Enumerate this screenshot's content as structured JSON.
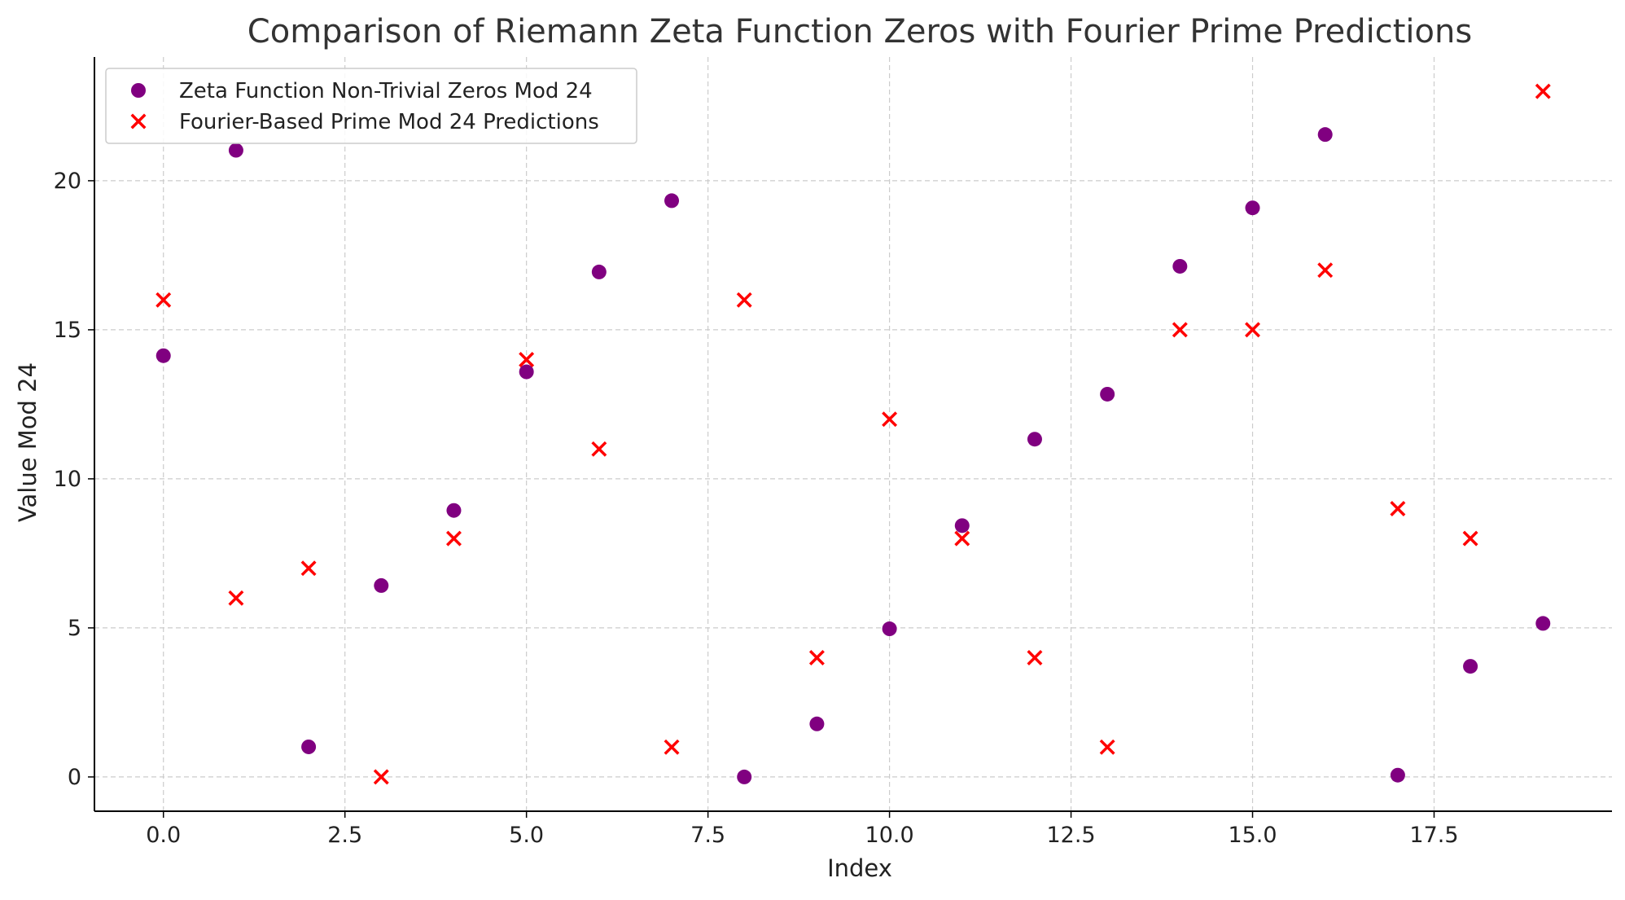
{
  "chart_data": {
    "type": "scatter",
    "title": "Comparison of Riemann Zeta Function Zeros with Fourier Prime Predictions",
    "xlabel": "Index",
    "ylabel": "Value Mod 24",
    "xlim": [
      -0.95,
      19.95
    ],
    "ylim": [
      -1.15,
      24.15
    ],
    "x_ticks": [
      0.0,
      2.5,
      5.0,
      7.5,
      10.0,
      12.5,
      15.0,
      17.5
    ],
    "x_tick_labels": [
      "0.0",
      "2.5",
      "5.0",
      "7.5",
      "10.0",
      "12.5",
      "15.0",
      "17.5"
    ],
    "y_ticks": [
      0,
      5,
      10,
      15,
      20
    ],
    "y_tick_labels": [
      "0",
      "5",
      "10",
      "15",
      "20"
    ],
    "grid": true,
    "legend_position": "top-left",
    "series": [
      {
        "name": "Zeta Function Non-Trivial Zeros Mod 24",
        "marker": "circle",
        "color": "#800080",
        "x": [
          0,
          1,
          2,
          3,
          4,
          5,
          6,
          7,
          8,
          9,
          10,
          11,
          12,
          13,
          14,
          15,
          16,
          17,
          18,
          19
        ],
        "y": [
          14.13,
          21.02,
          1.01,
          6.42,
          8.94,
          13.59,
          16.94,
          19.33,
          0.0,
          1.78,
          4.97,
          8.43,
          11.33,
          12.84,
          17.13,
          19.09,
          21.55,
          0.06,
          3.71,
          5.15
        ]
      },
      {
        "name": "Fourier-Based Prime Mod 24 Predictions",
        "marker": "x",
        "color": "#ff0000",
        "x": [
          0,
          1,
          2,
          3,
          4,
          5,
          6,
          7,
          8,
          9,
          10,
          11,
          12,
          13,
          14,
          15,
          16,
          17,
          18,
          19
        ],
        "y": [
          16,
          6,
          7,
          0,
          8,
          14,
          11,
          1,
          16,
          4,
          12,
          8,
          4,
          1,
          15,
          15,
          17,
          9,
          8,
          23
        ]
      }
    ]
  }
}
